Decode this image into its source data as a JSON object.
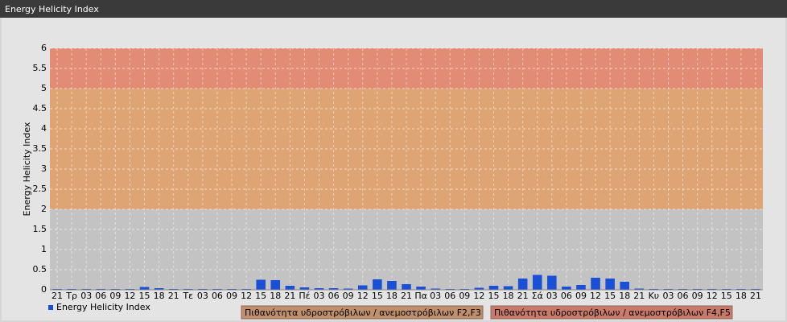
{
  "chart_data": {
    "type": "bar",
    "title": "Energy Helicity Index",
    "y_label": "Energy Helicity Index",
    "categories": [
      "21",
      "Τρ",
      "03",
      "06",
      "09",
      "12",
      "15",
      "18",
      "21",
      "Τε",
      "03",
      "06",
      "09",
      "12",
      "15",
      "18",
      "21",
      "Πέ",
      "03",
      "06",
      "09",
      "12",
      "15",
      "18",
      "21",
      "Πα",
      "03",
      "06",
      "09",
      "12",
      "15",
      "18",
      "21",
      "Σά",
      "03",
      "06",
      "09",
      "12",
      "15",
      "18",
      "21",
      "Κυ",
      "03",
      "06",
      "09",
      "12",
      "15",
      "18",
      "21"
    ],
    "series": [
      {
        "name": "Energy Helicity Index",
        "color": "#1a4fd8",
        "values": [
          0.02,
          0.02,
          0.02,
          0.02,
          0.02,
          0.02,
          0.07,
          0.04,
          0.02,
          0.02,
          0.02,
          0.02,
          0.02,
          0.02,
          0.25,
          0.24,
          0.1,
          0.06,
          0.04,
          0.04,
          0.03,
          0.11,
          0.26,
          0.22,
          0.14,
          0.08,
          0.03,
          0.02,
          0.02,
          0.05,
          0.1,
          0.09,
          0.28,
          0.37,
          0.35,
          0.08,
          0.12,
          0.3,
          0.28,
          0.2,
          0.03,
          0.02,
          0.02,
          0.02,
          0.02,
          0.02,
          0.02,
          0.02,
          0.02
        ]
      }
    ],
    "ylim": [
      0,
      6
    ],
    "yticks": [
      0,
      0.5,
      1,
      1.5,
      2,
      2.5,
      3,
      3.5,
      4,
      4.5,
      5,
      5.5,
      6
    ],
    "grid": true,
    "bands": [
      {
        "from": 0,
        "to": 2,
        "color": "#c3c3c3"
      },
      {
        "from": 2,
        "to": 5,
        "color": "#dea474",
        "label": "Πιθανότητα υδροστρόβιλων / ανεμοστρόβιλων F2,F3",
        "legend_color": "#c0906c"
      },
      {
        "from": 5,
        "to": 6,
        "color": "#e28c76",
        "label": "Πιθανότητα υδροστρόβιλων / ανεμοστρόβιλων F4,F5",
        "legend_color": "#c97a6a"
      }
    ]
  }
}
